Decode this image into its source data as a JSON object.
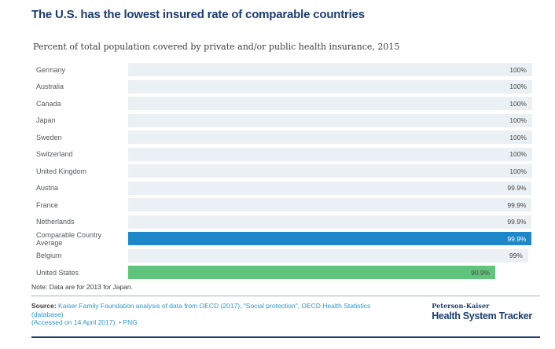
{
  "header": {
    "title": "The U.S. has the lowest insured rate of comparable countries",
    "subtitle": "Percent of total population covered by private and/or public health insurance, 2015"
  },
  "chart_data": {
    "type": "bar",
    "orientation": "horizontal",
    "title": "The U.S. has the lowest insured rate of comparable countries",
    "subtitle": "Percent of total population covered by private and/or public health insurance, 2015",
    "xlim": [
      0,
      100
    ],
    "grid": false,
    "legend": false,
    "categories": [
      "Germany",
      "Australia",
      "Canada",
      "Japan",
      "Sweden",
      "Switzerland",
      "United Kingdom",
      "Austria",
      "France",
      "Netherlands",
      "Comparable Country Average",
      "Belgium",
      "United States"
    ],
    "values": [
      100,
      100,
      100,
      100,
      100,
      100,
      100,
      99.9,
      99.9,
      99.9,
      99.9,
      99,
      90.9
    ],
    "rows": [
      {
        "label": "Germany",
        "value": 100,
        "display": "100%",
        "color": "default"
      },
      {
        "label": "Australia",
        "value": 100,
        "display": "100%",
        "color": "default"
      },
      {
        "label": "Canada",
        "value": 100,
        "display": "100%",
        "color": "default"
      },
      {
        "label": "Japan",
        "value": 100,
        "display": "100%",
        "color": "default"
      },
      {
        "label": "Sweden",
        "value": 100,
        "display": "100%",
        "color": "default"
      },
      {
        "label": "Switzerland",
        "value": 100,
        "display": "100%",
        "color": "default"
      },
      {
        "label": "United Kingdom",
        "value": 100,
        "display": "100%",
        "color": "default"
      },
      {
        "label": "Austria",
        "value": 99.9,
        "display": "99.9%",
        "color": "default"
      },
      {
        "label": "France",
        "value": 99.9,
        "display": "99.9%",
        "color": "default"
      },
      {
        "label": "Netherlands",
        "value": 99.9,
        "display": "99.9%",
        "color": "default"
      },
      {
        "label": "Comparable Country Average",
        "value": 99.9,
        "display": "99.9%",
        "color": "average"
      },
      {
        "label": "Belgium",
        "value": 99,
        "display": "99%",
        "color": "default"
      },
      {
        "label": "United States",
        "value": 90.9,
        "display": "90.9%",
        "color": "us"
      }
    ]
  },
  "colors": {
    "title_navy": "#1e3d70",
    "bar_default": "#ebf0f4",
    "bar_average": "#1d87c8",
    "bar_us": "#60c47d",
    "link_blue": "#2b97d4",
    "text_dark": "#3d3d3d",
    "label_gray": "#54585d",
    "bottom_rule_navy": "#1e3d70"
  },
  "footer": {
    "note": "Note: Data are for 2013 for Japan.",
    "source_label": "Source:",
    "source_line1": "Kaiser Family Foundation analysis of data from OECD (2017), \"Social protection\", OECD Health Statistics (database)",
    "source_line2": "(Accessed on 14 April 2017).",
    "separator": "•",
    "png_label": "PNG",
    "logo_top": "Peterson-Kaiser",
    "logo_bottom": "Health System Tracker"
  }
}
